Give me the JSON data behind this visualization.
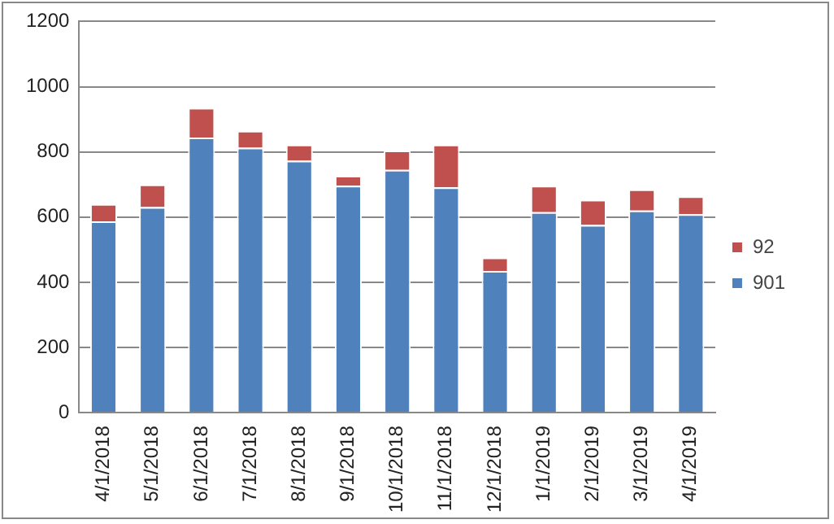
{
  "chart_data": {
    "type": "bar",
    "stacked": true,
    "categories": [
      "4/1/2018",
      "5/1/2018",
      "6/1/2018",
      "7/1/2018",
      "8/1/2018",
      "9/1/2018",
      "10/1/2018",
      "11/1/2018",
      "12/1/2018",
      "1/1/2019",
      "2/1/2019",
      "3/1/2019",
      "4/1/2019"
    ],
    "series": [
      {
        "name": "901",
        "color": "#4f81bd",
        "values": [
          587,
          631,
          844,
          813,
          773,
          696,
          745,
          691,
          435,
          615,
          576,
          620,
          609
        ]
      },
      {
        "name": "92",
        "color": "#c0504d",
        "values": [
          53,
          69,
          91,
          52,
          49,
          31,
          59,
          131,
          41,
          81,
          77,
          65,
          55
        ]
      }
    ],
    "ylim": [
      0,
      1200
    ],
    "yticks": [
      0,
      200,
      400,
      600,
      800,
      1000,
      1200
    ],
    "grid": "y",
    "legend": "right"
  }
}
